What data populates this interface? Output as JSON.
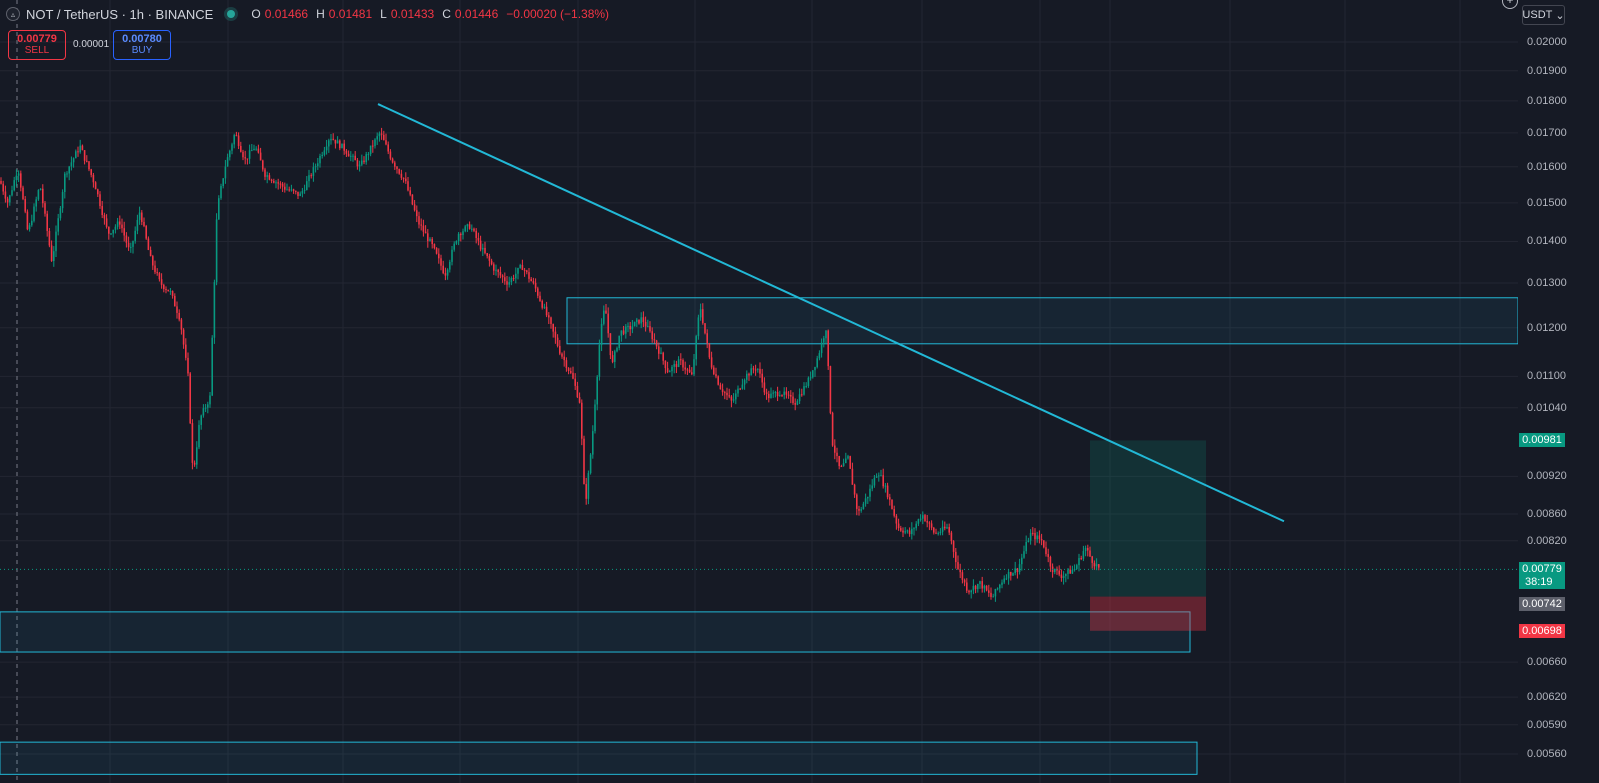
{
  "symbol": {
    "name": "NOT / TetherUS · 1h · BINANCE",
    "logo_glyph": "▵"
  },
  "ohlc": {
    "o_label": "O",
    "o": "0.01466",
    "h_label": "H",
    "h": "0.01481",
    "l_label": "L",
    "l": "0.01433",
    "c_label": "C",
    "c": "0.01446",
    "change": "−0.00020 (−1.38%)"
  },
  "trade": {
    "sell_price": "0.00779",
    "sell_label": "SELL",
    "spread": "0.00001",
    "buy_price": "0.00780",
    "buy_label": "BUY"
  },
  "currency_selector": {
    "label": "USDT",
    "caret": "⌄"
  },
  "price_axis": {
    "ticks": [
      "0.02000",
      "0.01900",
      "0.01800",
      "0.01700",
      "0.01600",
      "0.01500",
      "0.01400",
      "0.01300",
      "0.01200",
      "0.01100",
      "0.01040",
      "0.00920",
      "0.00860",
      "0.00820",
      "0.00660",
      "0.00620",
      "0.00590",
      "0.00560"
    ],
    "tick_values": [
      0.02,
      0.019,
      0.018,
      0.017,
      0.016,
      0.015,
      0.014,
      0.013,
      0.012,
      0.011,
      0.0104,
      0.0092,
      0.0086,
      0.0082,
      0.0066,
      0.0062,
      0.0059,
      0.0056
    ],
    "scale": "log"
  },
  "price_tags": {
    "current": "0.00779",
    "countdown": "38:19",
    "take_profit": "0.00981",
    "entry": "0.00742",
    "stop_loss": "0.00698"
  },
  "colors": {
    "up": "#089981",
    "down": "#f23645",
    "trendline": "#22b8d6",
    "zone": "#22b8d6",
    "background": "#161a25",
    "grid": "#232632"
  },
  "chart_data": {
    "type": "candlestick",
    "symbol": "NOT/USDT",
    "interval": "1h",
    "scale": "log",
    "path_points": [
      [
        0,
        0.0156
      ],
      [
        8,
        0.015
      ],
      [
        18,
        0.016
      ],
      [
        28,
        0.0142
      ],
      [
        40,
        0.0155
      ],
      [
        52,
        0.0135
      ],
      [
        65,
        0.0158
      ],
      [
        80,
        0.0166
      ],
      [
        95,
        0.0155
      ],
      [
        108,
        0.0142
      ],
      [
        120,
        0.0145
      ],
      [
        130,
        0.0137
      ],
      [
        140,
        0.0148
      ],
      [
        150,
        0.0136
      ],
      [
        160,
        0.013
      ],
      [
        170,
        0.0128
      ],
      [
        180,
        0.0122
      ],
      [
        188,
        0.011
      ],
      [
        193,
        0.0092
      ],
      [
        200,
        0.0102
      ],
      [
        210,
        0.0106
      ],
      [
        217,
        0.0148
      ],
      [
        225,
        0.016
      ],
      [
        235,
        0.017
      ],
      [
        245,
        0.0162
      ],
      [
        255,
        0.0166
      ],
      [
        265,
        0.0158
      ],
      [
        275,
        0.0156
      ],
      [
        285,
        0.0154
      ],
      [
        300,
        0.0152
      ],
      [
        315,
        0.016
      ],
      [
        330,
        0.0169
      ],
      [
        345,
        0.0165
      ],
      [
        360,
        0.016
      ],
      [
        372,
        0.0166
      ],
      [
        380,
        0.017
      ],
      [
        392,
        0.0162
      ],
      [
        405,
        0.0156
      ],
      [
        418,
        0.0145
      ],
      [
        432,
        0.0139
      ],
      [
        445,
        0.0132
      ],
      [
        458,
        0.0142
      ],
      [
        470,
        0.0144
      ],
      [
        482,
        0.0138
      ],
      [
        495,
        0.0133
      ],
      [
        508,
        0.013
      ],
      [
        522,
        0.0134
      ],
      [
        535,
        0.0129
      ],
      [
        548,
        0.0122
      ],
      [
        560,
        0.0115
      ],
      [
        572,
        0.011
      ],
      [
        580,
        0.0105
      ],
      [
        585,
        0.0087
      ],
      [
        592,
        0.0098
      ],
      [
        600,
        0.0118
      ],
      [
        605,
        0.0125
      ],
      [
        612,
        0.0112
      ],
      [
        620,
        0.0119
      ],
      [
        630,
        0.012
      ],
      [
        642,
        0.0122
      ],
      [
        655,
        0.0117
      ],
      [
        668,
        0.0111
      ],
      [
        680,
        0.0113
      ],
      [
        692,
        0.011
      ],
      [
        700,
        0.0125
      ],
      [
        710,
        0.0113
      ],
      [
        720,
        0.0108
      ],
      [
        732,
        0.0105
      ],
      [
        745,
        0.011
      ],
      [
        757,
        0.0112
      ],
      [
        767,
        0.0106
      ],
      [
        780,
        0.0107
      ],
      [
        795,
        0.0105
      ],
      [
        808,
        0.0109
      ],
      [
        818,
        0.0114
      ],
      [
        826,
        0.012
      ],
      [
        832,
        0.0098
      ],
      [
        840,
        0.0093
      ],
      [
        848,
        0.0095
      ],
      [
        858,
        0.0086
      ],
      [
        868,
        0.0089
      ],
      [
        878,
        0.0093
      ],
      [
        888,
        0.0089
      ],
      [
        898,
        0.0084
      ],
      [
        910,
        0.0083
      ],
      [
        922,
        0.0086
      ],
      [
        935,
        0.0083
      ],
      [
        948,
        0.0084
      ],
      [
        958,
        0.0078
      ],
      [
        968,
        0.0075
      ],
      [
        980,
        0.0076
      ],
      [
        992,
        0.0074
      ],
      [
        1005,
        0.0077
      ],
      [
        1018,
        0.0078
      ],
      [
        1030,
        0.0083
      ],
      [
        1042,
        0.0082
      ],
      [
        1052,
        0.0078
      ],
      [
        1062,
        0.0077
      ],
      [
        1075,
        0.0078
      ],
      [
        1085,
        0.0081
      ],
      [
        1093,
        0.0079
      ],
      [
        1100,
        0.00779
      ]
    ],
    "trendline": {
      "from": [
        378,
        0.0179
      ],
      "to": [
        1284,
        0.00849
      ]
    },
    "zones": [
      {
        "top": 0.01266,
        "bottom": 0.01166,
        "x_from": 567,
        "x_to": 1518
      },
      {
        "top": 0.00722,
        "bottom": 0.00672,
        "x_from": 0,
        "x_to": 1190
      },
      {
        "top": 0.00572,
        "bottom": 0.0054,
        "x_from": 0,
        "x_to": 1197
      }
    ],
    "position": {
      "entry": 0.00742,
      "take_profit": 0.00981,
      "stop_loss": 0.00698,
      "x_from": 1090,
      "x_to": 1206
    },
    "last_price": 0.00779
  }
}
